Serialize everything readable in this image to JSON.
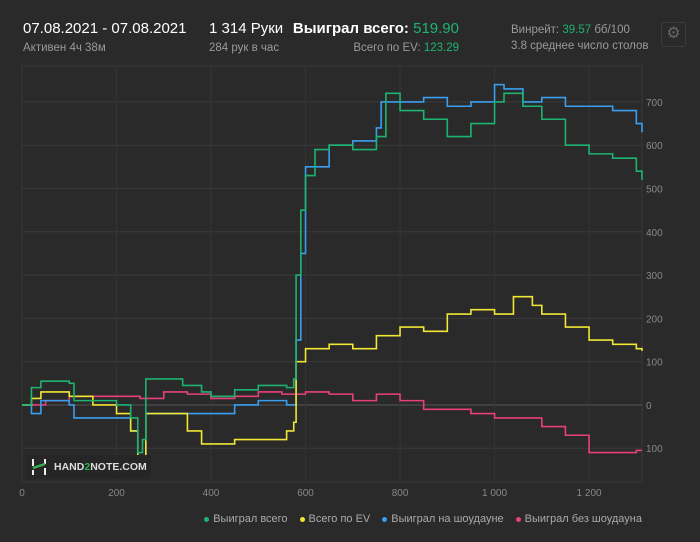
{
  "header": {
    "date_range": "07.08.2021 - 07.08.2021",
    "active": "Активен 4ч 38м",
    "hands": "1 314 Руки",
    "hands_per_hour": "284 рук в час",
    "won_total_label": "Выиграл всего:",
    "won_total_value": "519.90",
    "ev_label": "Всего по EV:",
    "ev_value": "123.29",
    "winrate_label": "Винрейт:",
    "winrate_value": "39.57",
    "winrate_unit": "бб/100",
    "tables": "3.8 среднее число столов"
  },
  "logo": {
    "text_a": "HAND",
    "text_b": "2",
    "text_c": "NOTE.COM"
  },
  "chart_data": {
    "type": "line",
    "xlim": [
      0,
      1312
    ],
    "ylim": [
      -178,
      783
    ],
    "x_ticks": [
      {
        "v": 0,
        "label": "0"
      },
      {
        "v": 200,
        "label": "200"
      },
      {
        "v": 400,
        "label": "400"
      },
      {
        "v": 600,
        "label": "600"
      },
      {
        "v": 800,
        "label": "800"
      },
      {
        "v": 1000,
        "label": "1 000"
      },
      {
        "v": 1200,
        "label": "1 200"
      }
    ],
    "y_ticks": [
      {
        "v": 700,
        "label": "700"
      },
      {
        "v": 600,
        "label": "600"
      },
      {
        "v": 500,
        "label": "500"
      },
      {
        "v": 400,
        "label": "400"
      },
      {
        "v": 300,
        "label": "300"
      },
      {
        "v": 200,
        "label": "200"
      },
      {
        "v": 100,
        "label": "100"
      },
      {
        "v": 0,
        "label": "0"
      },
      {
        "v": -100,
        "label": "100"
      }
    ],
    "legend_position": "bottom-right",
    "series": [
      {
        "name": "Выиграл всего",
        "color": "#1db370",
        "x": [
          0,
          20,
          40,
          100,
          110,
          200,
          230,
          245,
          255,
          262,
          300,
          340,
          380,
          400,
          450,
          500,
          560,
          575,
          580,
          590,
          600,
          620,
          650,
          700,
          750,
          770,
          800,
          850,
          900,
          950,
          1000,
          1020,
          1060,
          1100,
          1150,
          1200,
          1250,
          1300,
          1312
        ],
        "y": [
          0,
          40,
          55,
          50,
          10,
          0,
          -30,
          -110,
          -80,
          60,
          60,
          45,
          30,
          20,
          35,
          45,
          40,
          60,
          300,
          450,
          530,
          590,
          600,
          590,
          620,
          720,
          680,
          660,
          620,
          650,
          700,
          720,
          690,
          660,
          600,
          580,
          570,
          540,
          520
        ]
      },
      {
        "name": "Всего по EV",
        "color": "#f0e634",
        "x": [
          0,
          20,
          40,
          100,
          150,
          200,
          230,
          245,
          262,
          300,
          350,
          380,
          400,
          450,
          500,
          560,
          575,
          580,
          600,
          650,
          700,
          750,
          800,
          850,
          900,
          950,
          1000,
          1040,
          1080,
          1100,
          1150,
          1200,
          1250,
          1300,
          1312
        ],
        "y": [
          0,
          15,
          30,
          20,
          0,
          -20,
          -60,
          -120,
          -20,
          -20,
          -60,
          -90,
          -90,
          -80,
          -80,
          -60,
          -40,
          100,
          130,
          140,
          130,
          160,
          180,
          170,
          210,
          220,
          210,
          250,
          230,
          210,
          180,
          150,
          140,
          130,
          125
        ]
      },
      {
        "name": "Выиграл на шоудауне",
        "color": "#3a9ef0",
        "x": [
          0,
          20,
          40,
          100,
          110,
          200,
          230,
          245,
          262,
          300,
          350,
          400,
          450,
          500,
          560,
          575,
          580,
          590,
          600,
          650,
          700,
          750,
          760,
          800,
          850,
          900,
          950,
          1000,
          1020,
          1060,
          1100,
          1150,
          1200,
          1250,
          1300,
          1312
        ],
        "y": [
          0,
          -20,
          10,
          0,
          -30,
          -30,
          -60,
          -120,
          -20,
          -20,
          -20,
          -20,
          0,
          10,
          0,
          0,
          150,
          350,
          550,
          600,
          610,
          640,
          700,
          700,
          710,
          690,
          700,
          740,
          730,
          700,
          710,
          690,
          690,
          680,
          650,
          630
        ]
      },
      {
        "name": "Выиграл без шоудауна",
        "color": "#e8407a",
        "x": [
          0,
          50,
          100,
          150,
          200,
          250,
          300,
          350,
          400,
          450,
          500,
          550,
          600,
          650,
          700,
          750,
          800,
          850,
          900,
          950,
          1000,
          1050,
          1100,
          1150,
          1200,
          1250,
          1300,
          1312
        ],
        "y": [
          0,
          10,
          20,
          20,
          20,
          15,
          30,
          25,
          15,
          20,
          30,
          25,
          30,
          25,
          10,
          25,
          10,
          -10,
          -10,
          -20,
          -30,
          -30,
          -50,
          -70,
          -110,
          -110,
          -105,
          -105
        ]
      }
    ]
  }
}
